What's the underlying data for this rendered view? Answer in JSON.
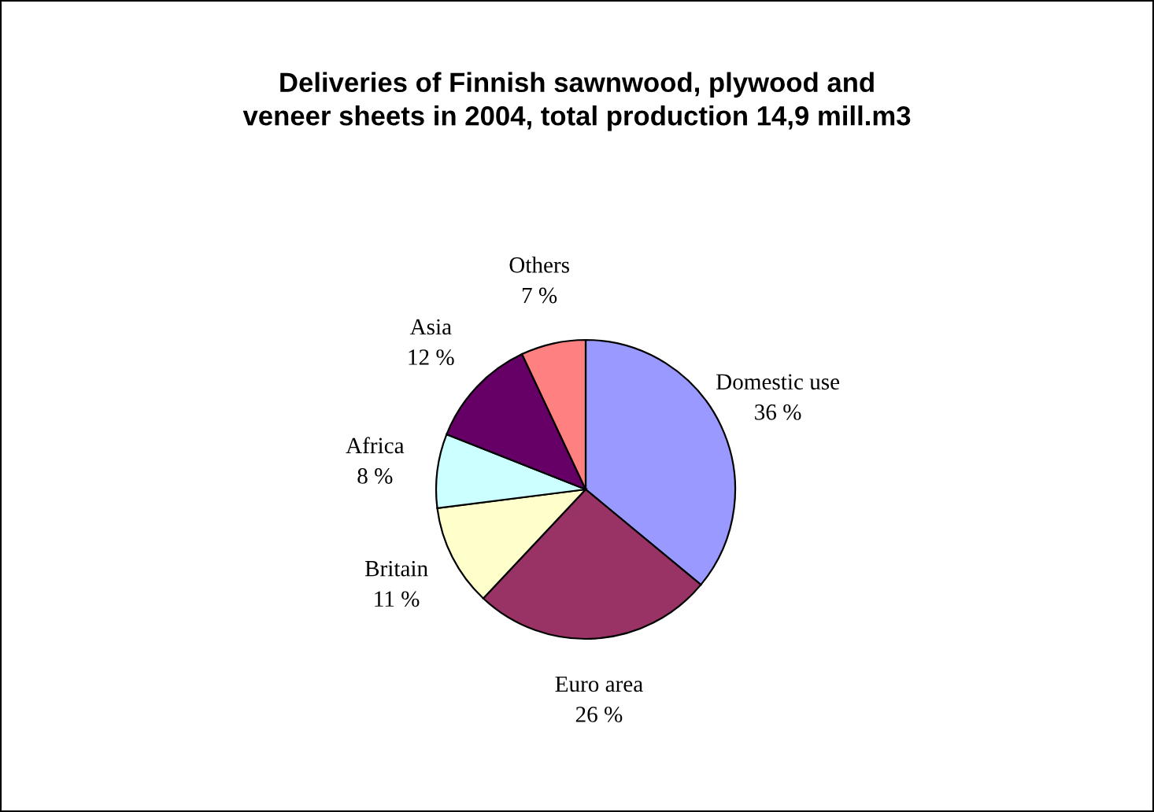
{
  "chart_data": {
    "type": "pie",
    "title": "Deliveries of Finnish sawnwood, plywood and\nveneer sheets in 2004, total production 14,9 mill.m3",
    "categories": [
      "Domestic use",
      "Euro area",
      "Britain",
      "Africa",
      "Asia",
      "Others"
    ],
    "values": [
      36,
      26,
      11,
      8,
      12,
      7
    ],
    "value_labels": [
      "36 %",
      "26 %",
      "11 %",
      "8 %",
      "12 %",
      "7 %"
    ],
    "colors": [
      "#9999ff",
      "#993366",
      "#ffffcc",
      "#ccffff",
      "#660066",
      "#ff8080"
    ],
    "legend": false
  }
}
